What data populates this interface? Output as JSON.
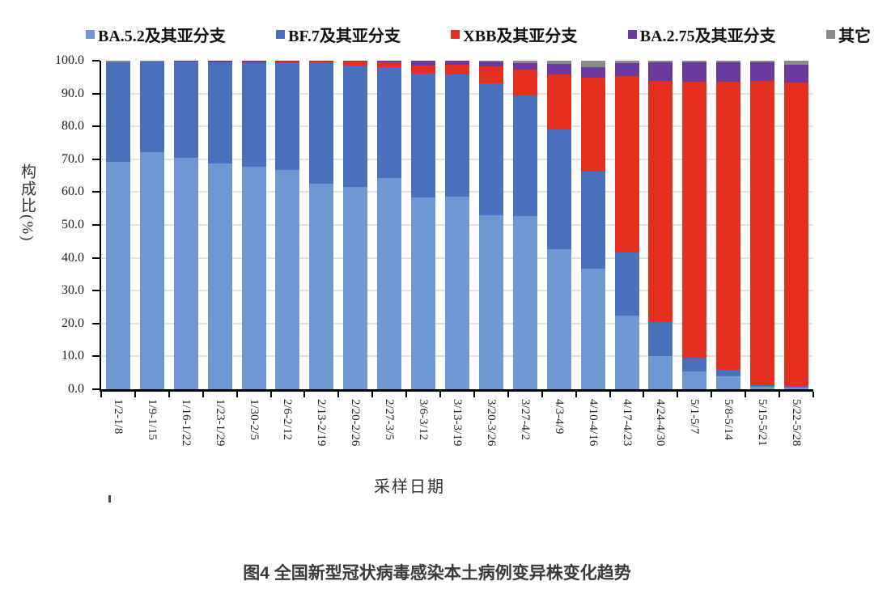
{
  "page": {
    "caption": "图4 全国新型冠状病毒感染本土病例变异株变化趋势",
    "background": "#ffffff"
  },
  "chart_data": {
    "type": "bar",
    "stacked": true,
    "stacked_total": 100,
    "title": "",
    "xlabel": "采样日期",
    "ylabel": "构成比(%)",
    "ylim": [
      0,
      100
    ],
    "y_tick_step": 10,
    "y_ticks": [
      "100.0",
      "90.0",
      "80.0",
      "70.0",
      "60.0",
      "50.0",
      "40.0",
      "30.0",
      "20.0",
      "10.0",
      "0.0"
    ],
    "legend_position": "top",
    "grid": "horizontal",
    "gridline_color": "#e2e2e2",
    "axis_color": "#000000",
    "categories": [
      "1/2-1/8",
      "1/9-1/15",
      "1/16-1/22",
      "1/23-1/29",
      "1/30-2/5",
      "2/6-2/12",
      "2/13-2/19",
      "2/20-2/26",
      "2/27-3/5",
      "3/6-3/12",
      "3/13-3/19",
      "3/20-3/26",
      "3/27-4/2",
      "4/3-4/9",
      "4/10-4/16",
      "4/17-4/23",
      "4/24-4/30",
      "5/1-5/7",
      "5/8-5/14",
      "5/15-5/21",
      "5/22-5/28"
    ],
    "series": [
      {
        "name": "BA.5.2及其亚分支",
        "color": "#6f97d1",
        "values": [
          69.3,
          72.2,
          70.4,
          68.8,
          67.8,
          66.7,
          62.6,
          61.7,
          64.4,
          58.3,
          58.7,
          53.0,
          52.8,
          42.5,
          36.6,
          22.4,
          10.1,
          5.5,
          3.9,
          0.7,
          0.6
        ]
      },
      {
        "name": "BF.7及其亚分支",
        "color": "#4a6fbc",
        "values": [
          30.2,
          27.6,
          29.3,
          30.6,
          31.4,
          32.6,
          36.8,
          36.9,
          33.6,
          37.7,
          37.0,
          40.0,
          36.5,
          36.6,
          29.7,
          19.3,
          10.3,
          4.0,
          2.1,
          0.5,
          0.3
        ]
      },
      {
        "name": "XBB及其亚分支",
        "color": "#e5301f",
        "values": [
          0.0,
          0.0,
          0.0,
          0.1,
          0.2,
          0.5,
          0.4,
          1.1,
          1.6,
          2.6,
          3.0,
          5.3,
          8.0,
          16.6,
          28.5,
          53.7,
          73.4,
          84.0,
          87.6,
          92.6,
          92.5
        ]
      },
      {
        "name": "BA.2.75及其亚分支",
        "color": "#6c3a9d",
        "values": [
          0.0,
          0.0,
          0.2,
          0.4,
          0.5,
          0.1,
          0.1,
          0.2,
          0.3,
          1.3,
          1.2,
          1.5,
          1.9,
          3.4,
          3.3,
          3.8,
          5.8,
          6.1,
          5.9,
          5.7,
          5.4
        ]
      },
      {
        "name": "其它",
        "color": "#8a8a8a",
        "values": [
          0.5,
          0.2,
          0.1,
          0.1,
          0.1,
          0.1,
          0.1,
          0.1,
          0.1,
          0.1,
          0.1,
          0.2,
          0.8,
          0.9,
          1.9,
          0.8,
          0.4,
          0.4,
          0.5,
          0.5,
          1.2
        ]
      }
    ]
  }
}
